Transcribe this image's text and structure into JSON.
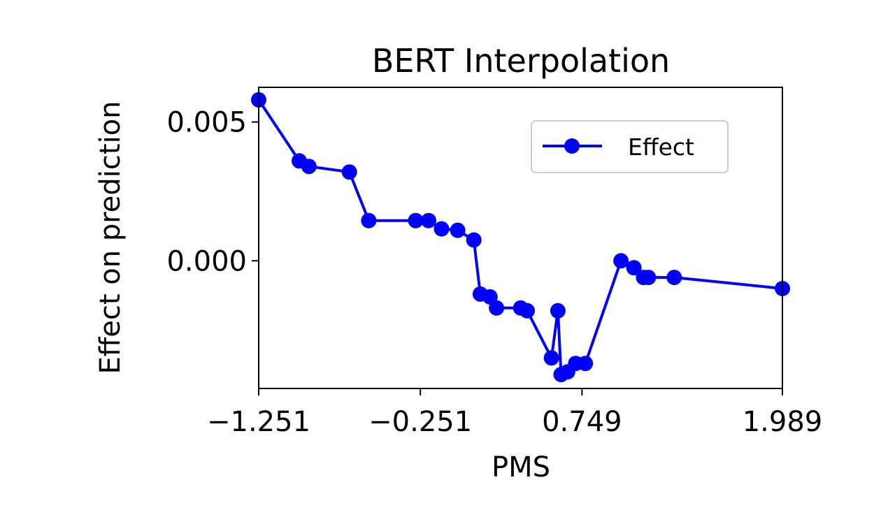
{
  "chart_data": {
    "type": "line",
    "title": "BERT Interpolation",
    "xlabel": "PMS",
    "ylabel": "Effect on prediction",
    "xlim": [
      -1.251,
      1.989
    ],
    "ylim": [
      -0.0046,
      0.00625
    ],
    "xticks": [
      -1.251,
      -0.251,
      0.749,
      1.989
    ],
    "xtick_labels": [
      "−1.251",
      "−0.251",
      "0.749",
      "1.989"
    ],
    "yticks": [
      0.0,
      0.005
    ],
    "ytick_labels": [
      "0.000",
      "0.005"
    ],
    "grid": false,
    "legend": {
      "position": "top-right",
      "entries": [
        "Effect"
      ]
    },
    "series": [
      {
        "name": "Effect",
        "color": "#0000ff",
        "marker": "circle",
        "x": [
          -1.251,
          -1.0,
          -0.94,
          -0.69,
          -0.57,
          -0.28,
          -0.2,
          -0.12,
          -0.02,
          0.08,
          0.12,
          0.18,
          0.22,
          0.37,
          0.41,
          0.56,
          0.6,
          0.62,
          0.66,
          0.71,
          0.77,
          0.99,
          1.07,
          1.13,
          1.16,
          1.32,
          1.989
        ],
        "y": [
          0.0058,
          0.0036,
          0.0034,
          0.0032,
          0.00145,
          0.00145,
          0.00145,
          0.00115,
          0.0011,
          0.00075,
          -0.0012,
          -0.0013,
          -0.0017,
          -0.0017,
          -0.0018,
          -0.0035,
          -0.0018,
          -0.0041,
          -0.004,
          -0.0037,
          -0.0037,
          0.0,
          -0.00025,
          -0.0006,
          -0.0006,
          -0.0006,
          -0.001
        ]
      }
    ]
  }
}
